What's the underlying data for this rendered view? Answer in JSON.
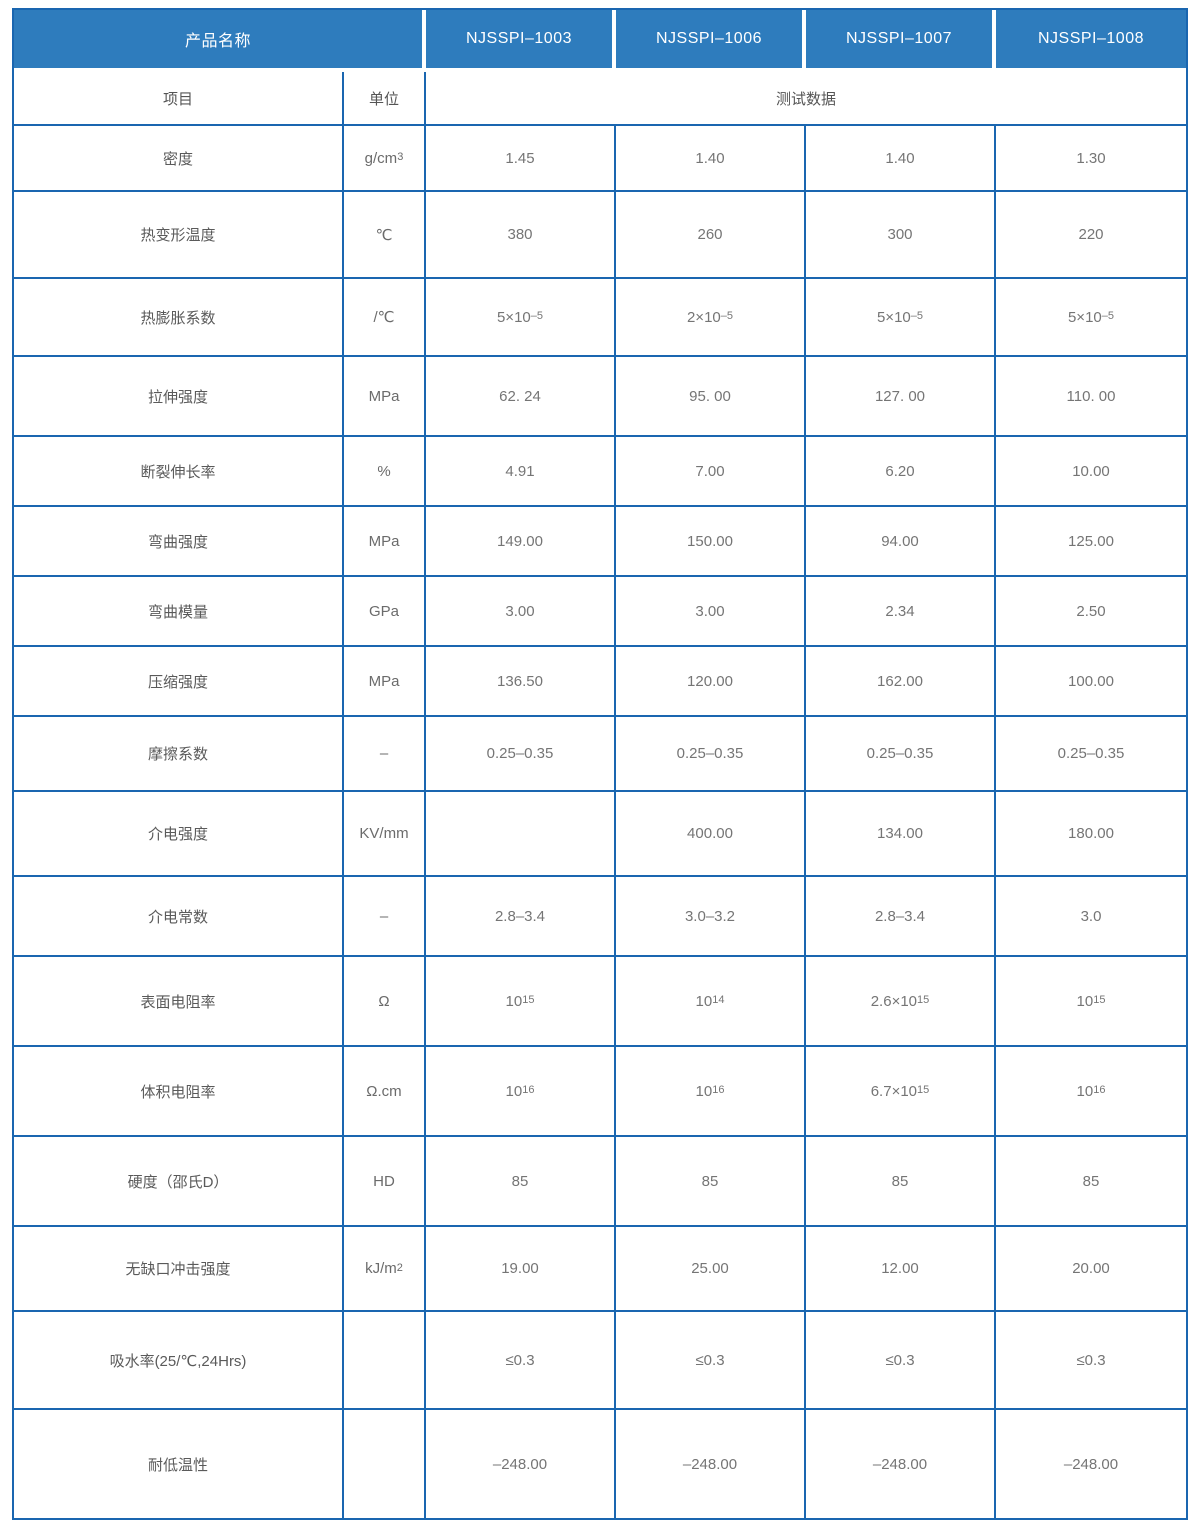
{
  "colors": {
    "header_bg": "#2e7cbd",
    "border": "#1a66b0",
    "header_text": "#ffffff",
    "label_text": "#5a5a5a",
    "value_text": "#757575"
  },
  "header": {
    "product_label": "产品名称",
    "products": [
      "NJSSPI–1003",
      "NJSSPI–1006",
      "NJSSPI–1007",
      "NJSSPI–1008"
    ]
  },
  "subheader": {
    "item": "项目",
    "unit": "单位",
    "test_data": "测试数据"
  },
  "rows": [
    {
      "label": "密度",
      "unit": "g/cm^3",
      "values": [
        "1.45",
        "1.40",
        "1.40",
        "1.30"
      ]
    },
    {
      "label": "热变形温度",
      "unit": "℃",
      "values": [
        "380",
        "260",
        "300",
        "220"
      ]
    },
    {
      "label": "热膨胀系数",
      "unit": "/℃",
      "values": [
        "5×10^–5",
        "2×10^–5",
        "5×10^–5",
        "5×10^–5"
      ]
    },
    {
      "label": "拉伸强度",
      "unit": "MPa",
      "values": [
        "62. 24",
        "95. 00",
        "127. 00",
        "110. 00"
      ]
    },
    {
      "label": "断裂伸长率",
      "unit": "%",
      "values": [
        "4.91",
        "7.00",
        "6.20",
        "10.00"
      ]
    },
    {
      "label": "弯曲强度",
      "unit": "MPa",
      "values": [
        "149.00",
        "150.00",
        "94.00",
        "125.00"
      ]
    },
    {
      "label": "弯曲模量",
      "unit": "GPa",
      "values": [
        "3.00",
        "3.00",
        "2.34",
        "2.50"
      ]
    },
    {
      "label": "压缩强度",
      "unit": "MPa",
      "values": [
        "136.50",
        "120.00",
        "162.00",
        "100.00"
      ]
    },
    {
      "label": "摩擦系数",
      "unit": "–",
      "values": [
        "0.25–0.35",
        "0.25–0.35",
        "0.25–0.35",
        "0.25–0.35"
      ]
    },
    {
      "label": "介电强度",
      "unit": "KV/mm",
      "values": [
        "",
        "400.00",
        "134.00",
        "180.00"
      ]
    },
    {
      "label": "介电常数",
      "unit": "–",
      "values": [
        "2.8–3.4",
        "3.0–3.2",
        "2.8–3.4",
        "3.0"
      ]
    },
    {
      "label": "表面电阻率",
      "unit": "Ω",
      "values": [
        "10^15",
        "10^14",
        "2.6×10^15",
        "10^15"
      ]
    },
    {
      "label": "体积电阻率",
      "unit": "Ω.cm",
      "values": [
        "10^16",
        "10^16",
        "6.7×10^15",
        "10^16"
      ]
    },
    {
      "label": "硬度（邵氏D）",
      "unit": "HD",
      "values": [
        "85",
        "85",
        "85",
        "85"
      ]
    },
    {
      "label": "无缺口冲击强度",
      "unit": "kJ/m^2",
      "values": [
        "19.00",
        "25.00",
        "12.00",
        "20.00"
      ]
    },
    {
      "label": "吸水率(25/℃,24Hrs)",
      "unit": "",
      "values": [
        "≤0.3",
        "≤0.3",
        "≤0.3",
        "≤0.3"
      ]
    },
    {
      "label": "耐低温性",
      "unit": "",
      "values": [
        "–248.00",
        "–248.00",
        "–248.00",
        "–248.00"
      ]
    }
  ]
}
